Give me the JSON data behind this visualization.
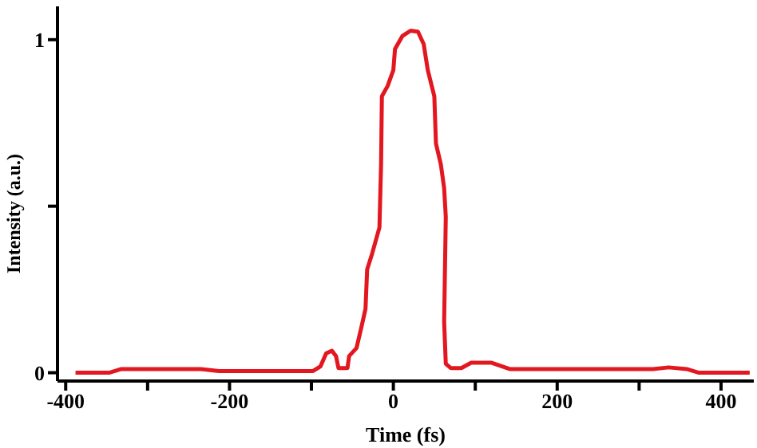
{
  "chart_data": {
    "type": "line",
    "xlabel": "Time (fs)",
    "ylabel": "Intensity (a.u.)",
    "x": [
      -388,
      -347,
      -332,
      -235,
      -213,
      -98,
      -89,
      -82,
      -75,
      -70,
      -67,
      -56,
      -54,
      -45,
      -39,
      -34,
      -32,
      -26,
      -17,
      -15,
      -14,
      -7,
      0,
      2,
      11,
      21,
      30,
      37,
      42,
      50,
      52,
      58,
      62,
      64,
      62,
      64,
      70,
      83,
      95,
      120,
      142,
      317,
      336,
      358,
      373,
      435
    ],
    "series": [
      {
        "color": "#e3171f",
        "values": [
          0,
          0,
          0.011,
          0.011,
          0.005,
          0.005,
          0.019,
          0.058,
          0.066,
          0.05,
          0.014,
          0.014,
          0.05,
          0.074,
          0.137,
          0.192,
          0.31,
          0.357,
          0.436,
          0.625,
          0.83,
          0.861,
          0.909,
          0.972,
          1.011,
          1.027,
          1.024,
          0.987,
          0.909,
          0.83,
          0.688,
          0.625,
          0.554,
          0.468,
          0.153,
          0.027,
          0.014,
          0.014,
          0.03,
          0.03,
          0.011,
          0.011,
          0.016,
          0.011,
          0,
          0
        ]
      }
    ],
    "xlim": [
      -410,
      440
    ],
    "xticks": [
      -400,
      {
        "value": -300,
        "label": null
      },
      -200,
      {
        "value": -100,
        "label": null
      },
      0,
      {
        "value": 100,
        "label": null
      },
      200,
      {
        "value": 300,
        "label": null
      },
      400
    ],
    "ylim": [
      -0.025,
      1.1
    ],
    "yticks": [
      0,
      {
        "value": 0.5,
        "label": null
      },
      1
    ],
    "grid": false,
    "legend": false,
    "marker": "none",
    "line_style": "solid"
  }
}
